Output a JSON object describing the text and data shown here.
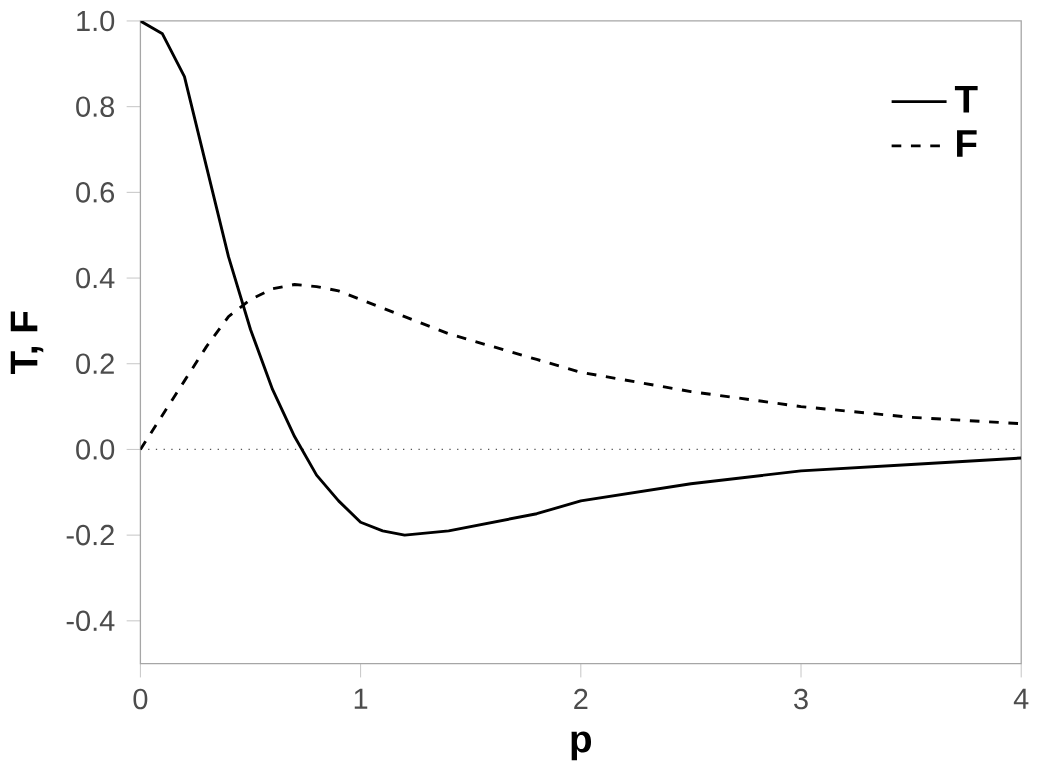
{
  "chart_data": {
    "type": "line",
    "xlabel": "p",
    "ylabel": "T, F",
    "xlim": [
      0,
      4
    ],
    "ylim": [
      -0.5,
      1.0
    ],
    "xticks": [
      0,
      1,
      2,
      3,
      4
    ],
    "yticks": [
      {
        "value": -0.4,
        "label": "-0.4"
      },
      {
        "value": -0.2,
        "label": "-0.2"
      },
      {
        "value": 0,
        "label": "0.0"
      },
      {
        "value": 0.2,
        "label": "0.2"
      },
      {
        "value": 0.4,
        "label": "0.4"
      },
      {
        "value": 0.6,
        "label": "0.6"
      },
      {
        "value": 0.8,
        "label": "0.8"
      },
      {
        "value": 1.0,
        "label": "1.0"
      }
    ],
    "x": [
      0,
      0.1,
      0.2,
      0.3,
      0.4,
      0.5,
      0.6,
      0.7,
      0.8,
      0.9,
      1.0,
      1.1,
      1.2,
      1.4,
      1.6,
      1.8,
      2.0,
      2.5,
      3.0,
      3.5,
      4.0
    ],
    "series": [
      {
        "name": "T",
        "color": "#000000",
        "line_style": "solid",
        "values": [
          1.0,
          0.97,
          0.87,
          0.66,
          0.45,
          0.28,
          0.14,
          0.03,
          -0.06,
          -0.12,
          -0.17,
          -0.19,
          -0.2,
          -0.19,
          -0.17,
          -0.15,
          -0.12,
          -0.08,
          -0.05,
          -0.035,
          -0.02
        ]
      },
      {
        "name": "F",
        "color": "#000000",
        "line_style": "dashed",
        "values": [
          0,
          0.08,
          0.16,
          0.24,
          0.31,
          0.35,
          0.375,
          0.385,
          0.38,
          0.37,
          0.35,
          0.33,
          0.31,
          0.27,
          0.24,
          0.21,
          0.18,
          0.135,
          0.1,
          0.075,
          0.06
        ]
      }
    ],
    "ref_lines": [
      {
        "axis": "y",
        "value": 0,
        "line_style": "dotted",
        "color": "#555555"
      }
    ],
    "legend": "top right",
    "grid": false,
    "marker": "none"
  }
}
